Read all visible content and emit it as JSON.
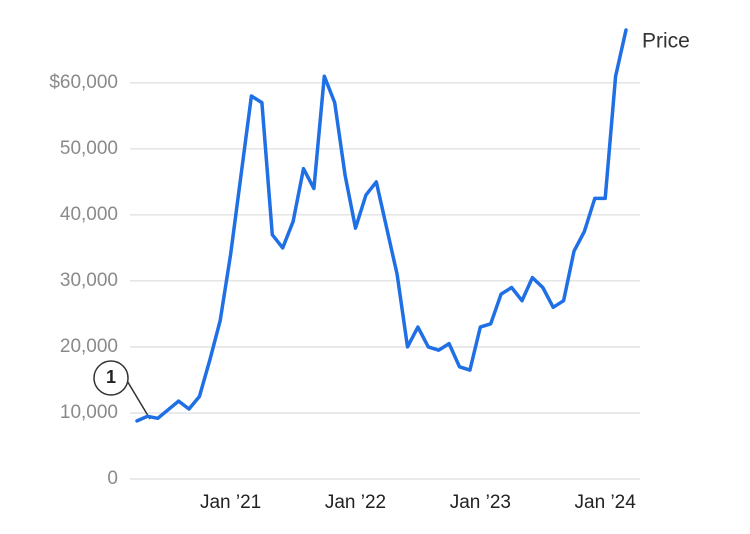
{
  "chart_data": {
    "type": "line",
    "annotation": "1",
    "x": [
      "2020-04",
      "2020-05",
      "2020-06",
      "2020-07",
      "2020-08",
      "2020-09",
      "2020-10",
      "2020-11",
      "2020-12",
      "2021-01",
      "2021-02",
      "2021-03",
      "2021-04",
      "2021-05",
      "2021-06",
      "2021-07",
      "2021-08",
      "2021-09",
      "2021-10",
      "2021-11",
      "2021-12",
      "2022-01",
      "2022-02",
      "2022-03",
      "2022-04",
      "2022-05",
      "2022-06",
      "2022-07",
      "2022-08",
      "2022-09",
      "2022-10",
      "2022-11",
      "2022-12",
      "2023-01",
      "2023-02",
      "2023-03",
      "2023-04",
      "2023-05",
      "2023-06",
      "2023-07",
      "2023-08",
      "2023-09",
      "2023-10",
      "2023-11",
      "2023-12",
      "2024-01",
      "2024-02",
      "2024-03"
    ],
    "series": [
      {
        "name": "Price",
        "color": "#1f6fe5",
        "values": [
          8800,
          9500,
          9200,
          10500,
          11800,
          10600,
          12500,
          18000,
          24000,
          34000,
          46000,
          58000,
          57000,
          37000,
          35000,
          39000,
          47000,
          44000,
          61000,
          57000,
          46000,
          38000,
          43000,
          45000,
          38000,
          31000,
          20000,
          23000,
          20000,
          19500,
          20500,
          17000,
          16500,
          23000,
          23500,
          28000,
          29000,
          27000,
          30500,
          29000,
          26000,
          27000,
          34500,
          37500,
          42500,
          42500,
          61000,
          68000
        ]
      }
    ],
    "xlim": [
      "2020-04",
      "2024-03"
    ],
    "xticks": [
      {
        "value": "2021-01",
        "label": "Jan ’21"
      },
      {
        "value": "2022-01",
        "label": "Jan ’22"
      },
      {
        "value": "2023-01",
        "label": "Jan ’23"
      },
      {
        "value": "2024-01",
        "label": "Jan ’24"
      }
    ],
    "ylim": [
      0,
      68000
    ],
    "yticks": [
      0,
      {
        "value": 10000,
        "label": "10,000"
      },
      {
        "value": 20000,
        "label": "20,000"
      },
      {
        "value": 30000,
        "label": "30,000"
      },
      {
        "value": 40000,
        "label": "40,000"
      },
      {
        "value": 50000,
        "label": "50,000"
      },
      {
        "value": 60000,
        "label": "$60,000"
      }
    ],
    "grid": true
  }
}
